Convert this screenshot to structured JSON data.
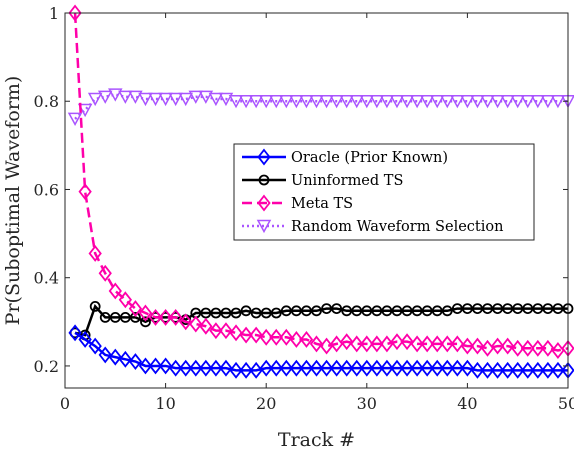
{
  "chart_data": {
    "type": "line",
    "xlabel": "Track #",
    "ylabel": "Pr(Suboptimal Waveform)",
    "xlim": [
      0,
      50
    ],
    "ylim": [
      0.15,
      1.0
    ],
    "xticks": [
      0,
      10,
      20,
      30,
      40,
      50
    ],
    "yticks": [
      0.2,
      0.4,
      0.6,
      0.8,
      1
    ],
    "x_tick_labels": [
      "0",
      "10",
      "20",
      "30",
      "40",
      "50"
    ],
    "y_tick_labels": [
      "0.2",
      "0.4",
      "0.6",
      "0.8",
      "1"
    ],
    "grid": false,
    "legend_position": "center-right",
    "x": [
      1,
      2,
      3,
      4,
      5,
      6,
      7,
      8,
      9,
      10,
      11,
      12,
      13,
      14,
      15,
      16,
      17,
      18,
      19,
      20,
      21,
      22,
      23,
      24,
      25,
      26,
      27,
      28,
      29,
      30,
      31,
      32,
      33,
      34,
      35,
      36,
      37,
      38,
      39,
      40,
      41,
      42,
      43,
      44,
      45,
      46,
      47,
      48,
      49,
      50
    ],
    "series": [
      {
        "name": "Oracle (Prior Known)",
        "color": "#0000ff",
        "marker": "diamond",
        "line_style": "solid",
        "values": [
          0.275,
          0.26,
          0.245,
          0.225,
          0.22,
          0.215,
          0.21,
          0.2,
          0.2,
          0.2,
          0.195,
          0.195,
          0.195,
          0.195,
          0.195,
          0.195,
          0.19,
          0.19,
          0.19,
          0.195,
          0.195,
          0.195,
          0.195,
          0.195,
          0.195,
          0.195,
          0.195,
          0.195,
          0.195,
          0.195,
          0.195,
          0.195,
          0.195,
          0.195,
          0.195,
          0.195,
          0.195,
          0.195,
          0.195,
          0.195,
          0.19,
          0.19,
          0.19,
          0.19,
          0.19,
          0.19,
          0.19,
          0.19,
          0.19,
          0.19
        ]
      },
      {
        "name": "Uninformed TS",
        "color": "#000000",
        "marker": "circle",
        "line_style": "solid",
        "values": [
          0.275,
          0.27,
          0.335,
          0.31,
          0.31,
          0.31,
          0.31,
          0.3,
          0.31,
          0.31,
          0.31,
          0.305,
          0.32,
          0.32,
          0.32,
          0.32,
          0.32,
          0.325,
          0.32,
          0.32,
          0.32,
          0.325,
          0.325,
          0.325,
          0.325,
          0.33,
          0.33,
          0.325,
          0.325,
          0.325,
          0.325,
          0.325,
          0.325,
          0.325,
          0.325,
          0.325,
          0.325,
          0.325,
          0.33,
          0.33,
          0.33,
          0.33,
          0.33,
          0.33,
          0.33,
          0.33,
          0.33,
          0.33,
          0.33,
          0.33
        ]
      },
      {
        "name": "Meta TS",
        "color": "#ff00aa",
        "marker": "diamond",
        "line_style": "dashed",
        "values": [
          1.0,
          0.595,
          0.455,
          0.41,
          0.37,
          0.35,
          0.33,
          0.32,
          0.31,
          0.31,
          0.31,
          0.3,
          0.295,
          0.29,
          0.28,
          0.28,
          0.275,
          0.27,
          0.27,
          0.265,
          0.265,
          0.265,
          0.26,
          0.26,
          0.25,
          0.245,
          0.25,
          0.255,
          0.25,
          0.25,
          0.25,
          0.25,
          0.255,
          0.255,
          0.25,
          0.25,
          0.25,
          0.25,
          0.25,
          0.245,
          0.245,
          0.24,
          0.245,
          0.245,
          0.24,
          0.24,
          0.24,
          0.24,
          0.235,
          0.24
        ]
      },
      {
        "name": "Random Waveform Selection",
        "color": "#aa55ff",
        "marker": "triangle-down",
        "line_style": "dotted",
        "values": [
          0.76,
          0.78,
          0.805,
          0.81,
          0.815,
          0.81,
          0.81,
          0.805,
          0.805,
          0.805,
          0.805,
          0.805,
          0.81,
          0.81,
          0.805,
          0.805,
          0.8,
          0.8,
          0.8,
          0.8,
          0.8,
          0.8,
          0.8,
          0.8,
          0.8,
          0.8,
          0.8,
          0.8,
          0.8,
          0.8,
          0.8,
          0.8,
          0.8,
          0.8,
          0.8,
          0.8,
          0.8,
          0.8,
          0.8,
          0.8,
          0.8,
          0.8,
          0.8,
          0.8,
          0.8,
          0.8,
          0.8,
          0.8,
          0.8,
          0.8
        ]
      }
    ]
  }
}
